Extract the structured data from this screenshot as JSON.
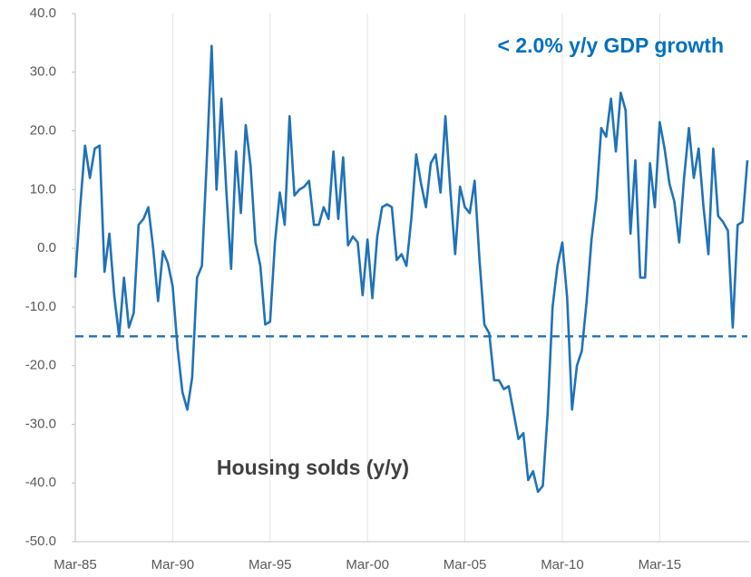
{
  "chart_data": {
    "type": "line",
    "annotations": [
      "< 2.0% y/y GDP growth",
      "Housing solds (y/y)"
    ],
    "categories": [
      "Mar-85",
      null,
      null,
      null,
      null,
      null,
      null,
      null,
      null,
      null,
      null,
      null,
      null,
      null,
      null,
      null,
      null,
      null,
      null,
      null,
      "Mar-90",
      null,
      null,
      null,
      null,
      null,
      null,
      null,
      null,
      null,
      null,
      null,
      null,
      null,
      null,
      null,
      null,
      null,
      null,
      null,
      "Mar-95",
      null,
      null,
      null,
      null,
      null,
      null,
      null,
      null,
      null,
      null,
      null,
      null,
      null,
      null,
      null,
      null,
      null,
      null,
      null,
      "Mar-00",
      null,
      null,
      null,
      null,
      null,
      null,
      null,
      null,
      null,
      null,
      null,
      null,
      null,
      null,
      null,
      null,
      null,
      null,
      null,
      "Mar-05",
      null,
      null,
      null,
      null,
      null,
      null,
      null,
      null,
      null,
      null,
      null,
      null,
      null,
      null,
      null,
      null,
      null,
      null,
      null,
      "Mar-10",
      null,
      null,
      null,
      null,
      null,
      null,
      null,
      null,
      null,
      null,
      null,
      null,
      null,
      null,
      null,
      null,
      null,
      null,
      null,
      "Mar-15",
      null,
      null,
      null,
      null,
      null,
      null,
      null,
      null,
      null,
      null,
      null,
      null,
      null,
      null,
      null,
      null,
      null,
      null
    ],
    "series": [
      {
        "color": "#1f72b8",
        "values": [
          -5,
          7,
          17.5,
          12,
          17,
          17.5,
          -4,
          2.5,
          -8,
          -15,
          -5,
          -13.5,
          -11,
          4,
          5,
          7,
          0,
          -9,
          -0.5,
          -2.5,
          -6.5,
          -17,
          -24.5,
          -27.5,
          -22,
          -5,
          -3,
          15,
          34.5,
          10,
          25.5,
          10,
          -3.5,
          16.5,
          6,
          21,
          14,
          1,
          -3,
          -13,
          -12.5,
          1,
          9.5,
          4,
          22.5,
          9,
          10,
          10.5,
          11.5,
          4,
          4,
          7,
          5,
          16.5,
          5,
          15.5,
          0.5,
          2,
          1,
          -8,
          1.5,
          -8.5,
          2,
          7,
          7.5,
          7,
          -2,
          -1,
          -3,
          5,
          16,
          11,
          7,
          14.5,
          16,
          9.5,
          22.5,
          10,
          -1,
          10.5,
          7,
          6,
          11.5,
          -2,
          -13,
          -14.5,
          -22.5,
          -22.5,
          -24,
          -23.5,
          -28,
          -32.5,
          -31.5,
          -39.5,
          -38,
          -41.5,
          -40.5,
          -28,
          -10,
          -3,
          1,
          -8.5,
          -27.5,
          -20,
          -17.5,
          -9,
          1.5,
          8.5,
          20.5,
          19,
          25.5,
          16.5,
          26.5,
          23.5,
          2.5,
          15,
          -5,
          -5,
          14.5,
          7,
          21.5,
          17,
          11,
          8,
          1,
          12,
          20.5,
          12,
          17,
          7,
          -1,
          17,
          5.5,
          4.5,
          3,
          -13.5,
          4,
          4.5,
          15
        ]
      }
    ],
    "threshold": -15,
    "ylim": [
      -50,
      40
    ],
    "yticks": [
      {
        "value": -50,
        "label": "-50.0"
      },
      {
        "value": -40,
        "label": "-40.0"
      },
      {
        "value": -30,
        "label": "-30.0"
      },
      {
        "value": -20,
        "label": "-20.0"
      },
      {
        "value": -10,
        "label": "-10.0"
      },
      {
        "value": 0,
        "label": "0.0"
      },
      {
        "value": 10,
        "label": "10.0"
      },
      {
        "value": 20,
        "label": "20.0"
      },
      {
        "value": 30,
        "label": "30.0"
      },
      {
        "value": 40,
        "label": "40.0"
      }
    ],
    "grid": "x"
  }
}
